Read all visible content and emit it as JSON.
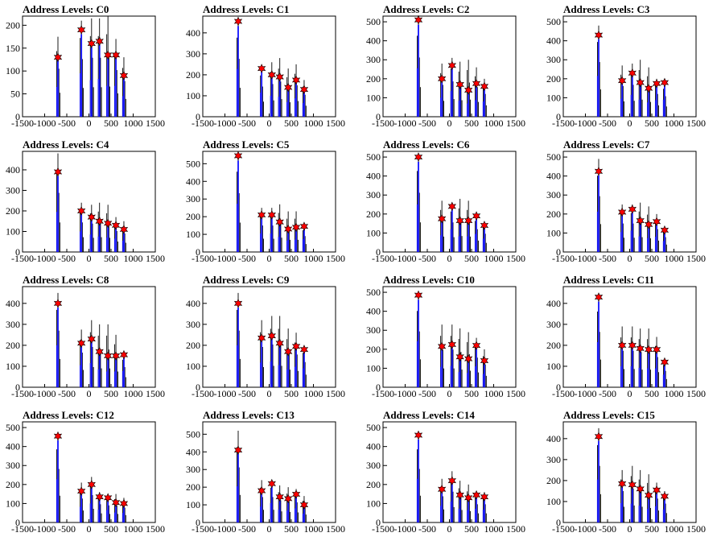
{
  "chart_data": [
    {
      "title": "Address Levels: C0",
      "type": "bar",
      "xlim": [
        -1500,
        1500
      ],
      "ylim": [
        0,
        220
      ],
      "yticks": [
        0,
        50,
        100,
        150,
        200
      ],
      "xticks": [
        -1500,
        -1000,
        -500,
        0,
        500,
        1000,
        1500
      ],
      "peaks": [
        [
          -700,
          130
        ],
        [
          -170,
          190
        ],
        [
          60,
          160
        ],
        [
          240,
          165
        ],
        [
          430,
          135
        ],
        [
          610,
          135
        ],
        [
          790,
          90
        ]
      ],
      "black_max": [
        175,
        210,
        215,
        215,
        220,
        170,
        130
      ]
    },
    {
      "title": "Address Levels: C1",
      "type": "bar",
      "xlim": [
        -1500,
        1500
      ],
      "ylim": [
        0,
        480
      ],
      "yticks": [
        0,
        100,
        200,
        300,
        400
      ],
      "xticks": [
        -1500,
        -1000,
        -500,
        0,
        500,
        1000,
        1500
      ],
      "peaks": [
        [
          -700,
          455
        ],
        [
          -170,
          230
        ],
        [
          60,
          200
        ],
        [
          240,
          190
        ],
        [
          430,
          140
        ],
        [
          610,
          175
        ],
        [
          790,
          130
        ]
      ],
      "black_max": [
        460,
        240,
        260,
        280,
        230,
        250,
        175
      ]
    },
    {
      "title": "Address Levels: C2",
      "type": "bar",
      "xlim": [
        -1500,
        1500
      ],
      "ylim": [
        0,
        530
      ],
      "yticks": [
        0,
        100,
        200,
        300,
        400,
        500
      ],
      "xticks": [
        -1500,
        -1000,
        -500,
        0,
        500,
        1000,
        1500
      ],
      "peaks": [
        [
          -700,
          510
        ],
        [
          -170,
          200
        ],
        [
          60,
          270
        ],
        [
          240,
          170
        ],
        [
          430,
          140
        ],
        [
          610,
          175
        ],
        [
          790,
          160
        ]
      ],
      "black_max": [
        520,
        280,
        310,
        290,
        300,
        260,
        200
      ]
    },
    {
      "title": "Address Levels: C3",
      "type": "bar",
      "xlim": [
        -1500,
        1500
      ],
      "ylim": [
        0,
        530
      ],
      "yticks": [
        0,
        100,
        200,
        300,
        400,
        500
      ],
      "xticks": [
        -1500,
        -1000,
        -500,
        0,
        500,
        1000,
        1500
      ],
      "peaks": [
        [
          -700,
          430
        ],
        [
          -170,
          190
        ],
        [
          60,
          230
        ],
        [
          240,
          180
        ],
        [
          430,
          150
        ],
        [
          610,
          175
        ],
        [
          790,
          180
        ]
      ],
      "black_max": [
        480,
        270,
        280,
        300,
        260,
        200,
        180
      ]
    },
    {
      "title": "Address Levels: C4",
      "type": "bar",
      "xlim": [
        -1500,
        1500
      ],
      "ylim": [
        0,
        490
      ],
      "yticks": [
        0,
        100,
        200,
        300,
        400
      ],
      "xticks": [
        -1500,
        -1000,
        -500,
        0,
        500,
        1000,
        1500
      ],
      "peaks": [
        [
          -700,
          390
        ],
        [
          -170,
          200
        ],
        [
          60,
          170
        ],
        [
          240,
          150
        ],
        [
          430,
          140
        ],
        [
          610,
          130
        ],
        [
          790,
          110
        ]
      ],
      "black_max": [
        480,
        240,
        230,
        240,
        230,
        170,
        150
      ]
    },
    {
      "title": "Address Levels: C5",
      "type": "bar",
      "xlim": [
        -1500,
        1500
      ],
      "ylim": [
        0,
        570
      ],
      "yticks": [
        0,
        100,
        200,
        300,
        400,
        500
      ],
      "xticks": [
        -1500,
        -1000,
        -500,
        0,
        500,
        1000,
        1500
      ],
      "peaks": [
        [
          -700,
          545
        ],
        [
          -170,
          210
        ],
        [
          60,
          210
        ],
        [
          240,
          170
        ],
        [
          430,
          130
        ],
        [
          610,
          140
        ],
        [
          790,
          145
        ]
      ],
      "black_max": [
        555,
        250,
        250,
        270,
        230,
        230,
        150
      ]
    },
    {
      "title": "Address Levels: C6",
      "type": "bar",
      "xlim": [
        -1500,
        1500
      ],
      "ylim": [
        0,
        530
      ],
      "yticks": [
        0,
        100,
        200,
        300,
        400,
        500
      ],
      "xticks": [
        -1500,
        -1000,
        -500,
        0,
        500,
        1000,
        1500
      ],
      "peaks": [
        [
          -700,
          500
        ],
        [
          -170,
          175
        ],
        [
          60,
          240
        ],
        [
          240,
          165
        ],
        [
          430,
          165
        ],
        [
          610,
          190
        ],
        [
          790,
          140
        ]
      ],
      "black_max": [
        520,
        270,
        260,
        280,
        270,
        200,
        160
      ]
    },
    {
      "title": "Address Levels: C7",
      "type": "bar",
      "xlim": [
        -1500,
        1500
      ],
      "ylim": [
        0,
        530
      ],
      "yticks": [
        0,
        100,
        200,
        300,
        400,
        500
      ],
      "xticks": [
        -1500,
        -1000,
        -500,
        0,
        500,
        1000,
        1500
      ],
      "peaks": [
        [
          -700,
          425
        ],
        [
          -170,
          210
        ],
        [
          60,
          225
        ],
        [
          240,
          165
        ],
        [
          430,
          145
        ],
        [
          610,
          160
        ],
        [
          790,
          115
        ]
      ],
      "black_max": [
        490,
        250,
        250,
        260,
        240,
        200,
        130
      ]
    },
    {
      "title": "Address Levels: C8",
      "type": "bar",
      "xlim": [
        -1500,
        1500
      ],
      "ylim": [
        0,
        480
      ],
      "yticks": [
        0,
        100,
        200,
        300,
        400
      ],
      "xticks": [
        -1500,
        -1000,
        -500,
        0,
        500,
        1000,
        1500
      ],
      "peaks": [
        [
          -700,
          400
        ],
        [
          -170,
          210
        ],
        [
          60,
          230
        ],
        [
          240,
          170
        ],
        [
          430,
          150
        ],
        [
          610,
          150
        ],
        [
          790,
          155
        ]
      ],
      "black_max": [
        450,
        275,
        320,
        300,
        300,
        250,
        160
      ]
    },
    {
      "title": "Address Levels: C9",
      "type": "bar",
      "xlim": [
        -1500,
        1500
      ],
      "ylim": [
        0,
        480
      ],
      "yticks": [
        0,
        100,
        200,
        300,
        400
      ],
      "xticks": [
        -1500,
        -1000,
        -500,
        0,
        500,
        1000,
        1500
      ],
      "peaks": [
        [
          -700,
          400
        ],
        [
          -170,
          235
        ],
        [
          60,
          245
        ],
        [
          240,
          210
        ],
        [
          430,
          170
        ],
        [
          610,
          195
        ],
        [
          790,
          180
        ]
      ],
      "black_max": [
        450,
        320,
        340,
        340,
        280,
        260,
        200
      ]
    },
    {
      "title": "Address Levels: C10",
      "type": "bar",
      "xlim": [
        -1500,
        1500
      ],
      "ylim": [
        0,
        530
      ],
      "yticks": [
        0,
        100,
        200,
        300,
        400,
        500
      ],
      "xticks": [
        -1500,
        -1000,
        -500,
        0,
        500,
        1000,
        1500
      ],
      "peaks": [
        [
          -700,
          485
        ],
        [
          -170,
          215
        ],
        [
          60,
          225
        ],
        [
          240,
          160
        ],
        [
          430,
          150
        ],
        [
          610,
          220
        ],
        [
          790,
          140
        ]
      ],
      "black_max": [
        490,
        330,
        330,
        310,
        290,
        260,
        200
      ]
    },
    {
      "title": "Address Levels: C11",
      "type": "bar",
      "xlim": [
        -1500,
        1500
      ],
      "ylim": [
        0,
        480
      ],
      "yticks": [
        0,
        100,
        200,
        300,
        400
      ],
      "xticks": [
        -1500,
        -1000,
        -500,
        0,
        500,
        1000,
        1500
      ],
      "peaks": [
        [
          -700,
          430
        ],
        [
          -170,
          200
        ],
        [
          60,
          200
        ],
        [
          240,
          185
        ],
        [
          430,
          180
        ],
        [
          610,
          180
        ],
        [
          790,
          120
        ]
      ],
      "black_max": [
        440,
        290,
        290,
        280,
        280,
        240,
        130
      ]
    },
    {
      "title": "Address Levels: C12",
      "type": "bar",
      "xlim": [
        -1500,
        1500
      ],
      "ylim": [
        0,
        530
      ],
      "yticks": [
        0,
        100,
        200,
        300,
        400,
        500
      ],
      "xticks": [
        -1500,
        -1000,
        -500,
        0,
        500,
        1000,
        1500
      ],
      "peaks": [
        [
          -700,
          455
        ],
        [
          -170,
          165
        ],
        [
          60,
          200
        ],
        [
          240,
          135
        ],
        [
          430,
          130
        ],
        [
          610,
          105
        ],
        [
          790,
          100
        ]
      ],
      "black_max": [
        470,
        210,
        240,
        160,
        150,
        150,
        130
      ]
    },
    {
      "title": "Address Levels: C13",
      "type": "bar",
      "xlim": [
        -1500,
        1500
      ],
      "ylim": [
        0,
        570
      ],
      "yticks": [
        0,
        100,
        200,
        300,
        400,
        500
      ],
      "xticks": [
        -1500,
        -1000,
        -500,
        0,
        500,
        1000,
        1500
      ],
      "peaks": [
        [
          -700,
          410
        ],
        [
          -170,
          180
        ],
        [
          60,
          220
        ],
        [
          240,
          145
        ],
        [
          430,
          135
        ],
        [
          610,
          160
        ],
        [
          790,
          100
        ]
      ],
      "black_max": [
        520,
        240,
        240,
        210,
        200,
        190,
        150
      ]
    },
    {
      "title": "Address Levels: C14",
      "type": "bar",
      "xlim": [
        -1500,
        1500
      ],
      "ylim": [
        0,
        530
      ],
      "yticks": [
        0,
        100,
        200,
        300,
        400,
        500
      ],
      "xticks": [
        -1500,
        -1000,
        -500,
        0,
        500,
        1000,
        1500
      ],
      "peaks": [
        [
          -700,
          460
        ],
        [
          -170,
          175
        ],
        [
          60,
          220
        ],
        [
          240,
          145
        ],
        [
          430,
          130
        ],
        [
          610,
          145
        ],
        [
          790,
          135
        ]
      ],
      "black_max": [
        470,
        230,
        270,
        220,
        200,
        160,
        160
      ]
    },
    {
      "title": "Address Levels: C15",
      "type": "bar",
      "xlim": [
        -1500,
        1500
      ],
      "ylim": [
        0,
        480
      ],
      "yticks": [
        0,
        100,
        200,
        300,
        400
      ],
      "xticks": [
        -1500,
        -1000,
        -500,
        0,
        500,
        1000,
        1500
      ],
      "peaks": [
        [
          -700,
          410
        ],
        [
          -170,
          185
        ],
        [
          60,
          180
        ],
        [
          240,
          160
        ],
        [
          430,
          130
        ],
        [
          610,
          155
        ],
        [
          790,
          125
        ]
      ],
      "black_max": [
        450,
        250,
        270,
        250,
        230,
        190,
        150
      ]
    }
  ]
}
